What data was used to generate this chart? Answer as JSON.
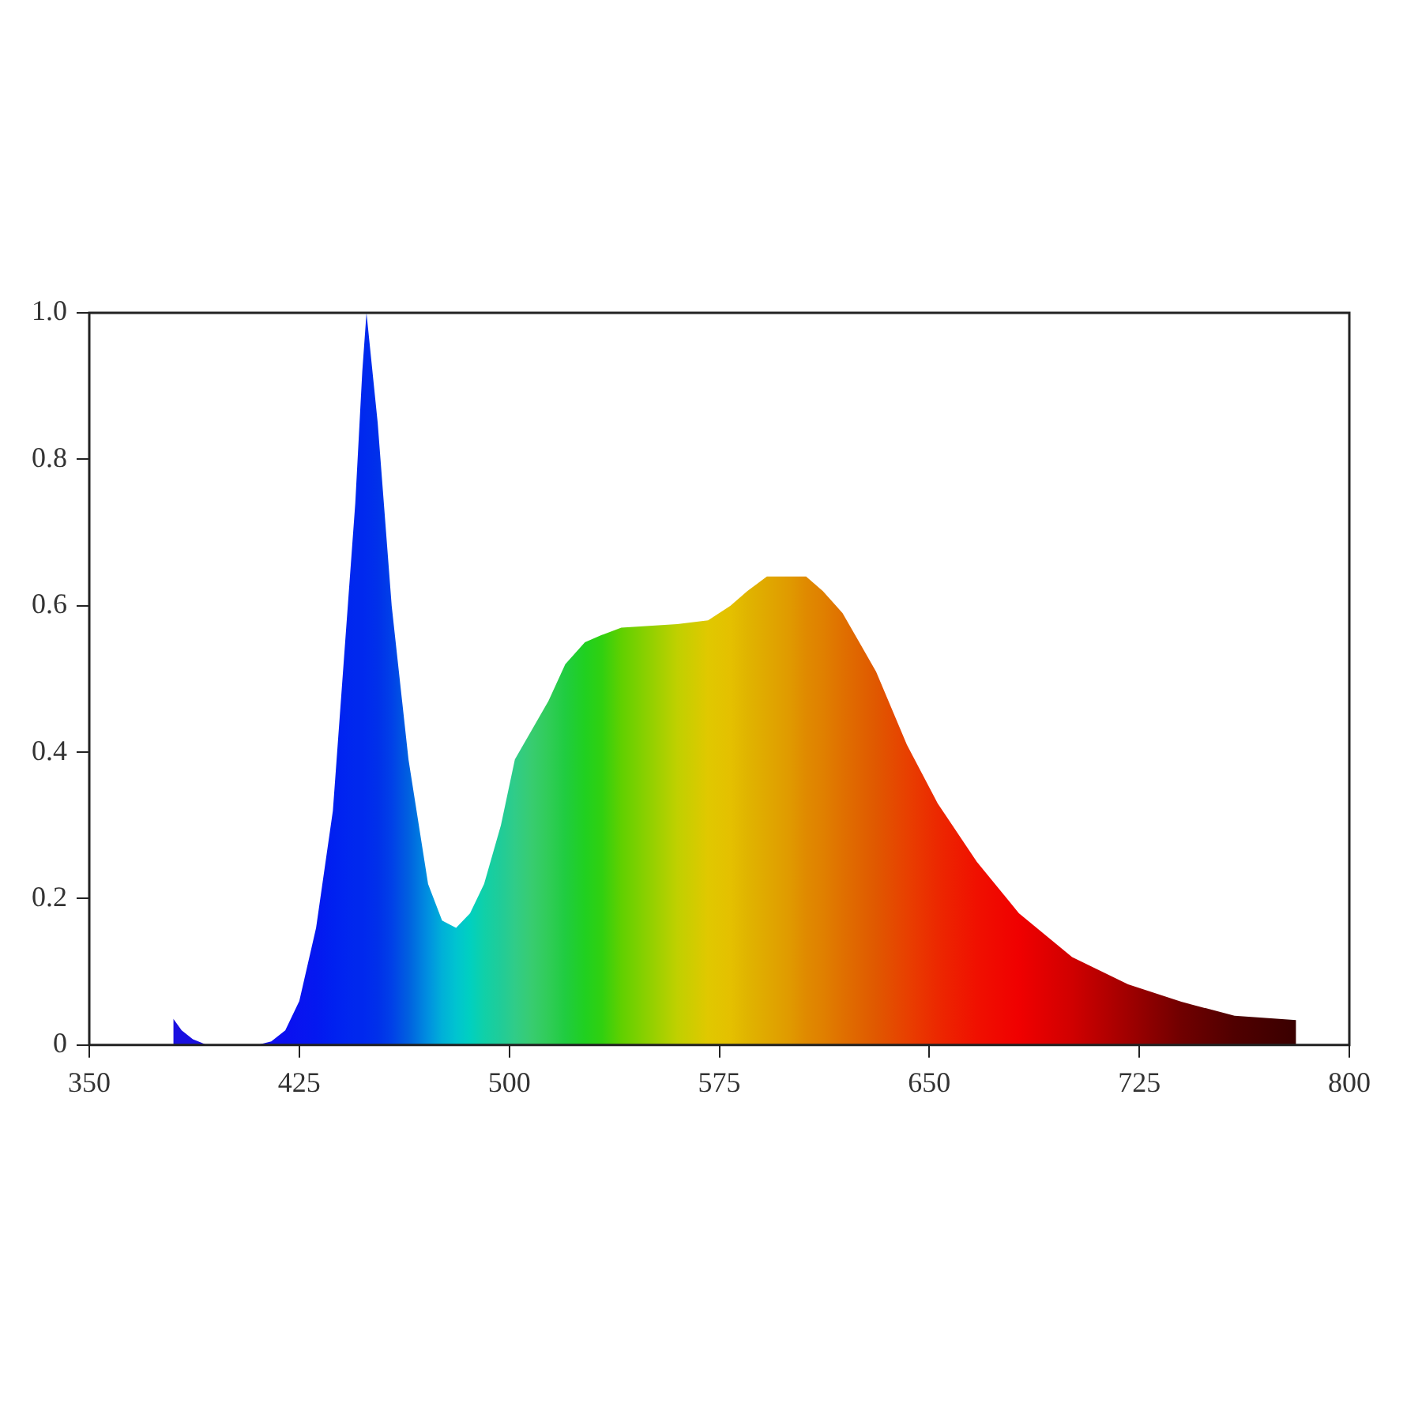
{
  "chart_data": {
    "type": "area",
    "marker": "none",
    "grid": false,
    "legend": false,
    "xlim": [
      350,
      800
    ],
    "xticks": [
      350,
      425,
      500,
      575,
      650,
      725,
      800
    ],
    "ylim": [
      0,
      1
    ],
    "yticks": [
      {
        "value": 0,
        "label": "0"
      },
      0.2,
      0.4,
      0.6,
      0.8,
      {
        "value": 1,
        "label": "1.0"
      }
    ],
    "series": [
      {
        "x": [
          380,
          383,
          387,
          392,
          410,
          415,
          420,
          425,
          431,
          437,
          441,
          445,
          447.5,
          449,
          453,
          458,
          464,
          471,
          476,
          481,
          486,
          491,
          497,
          502,
          508,
          514,
          520,
          527,
          533,
          540,
          560,
          571,
          579,
          585,
          592,
          600,
          606,
          612,
          619,
          625,
          631,
          642,
          653,
          667,
          682,
          701,
          721,
          740,
          759,
          781
        ],
        "values": [
          0.036,
          0.02,
          0.008,
          0,
          0,
          0.005,
          0.02,
          0.06,
          0.16,
          0.32,
          0.53,
          0.74,
          0.92,
          1.0,
          0.85,
          0.6,
          0.39,
          0.22,
          0.17,
          0.16,
          0.18,
          0.22,
          0.3,
          0.39,
          0.43,
          0.47,
          0.52,
          0.55,
          0.56,
          0.57,
          0.575,
          0.58,
          0.6,
          0.62,
          0.64,
          0.64,
          0.64,
          0.62,
          0.59,
          0.55,
          0.51,
          0.41,
          0.33,
          0.25,
          0.18,
          0.12,
          0.083,
          0.059,
          0.04,
          0.034
        ],
        "colors": [
          "#1a10e0",
          "#1a10e0",
          "#1a10e0",
          "#1a10e0",
          "#1410e8",
          "#1010ee",
          "#0a10f0",
          "#0814f0",
          "#0418f0",
          "#0020f0",
          "#0024f0",
          "#0028ee",
          "#0028ee",
          "#002aee",
          "#0030ea",
          "#0040e8",
          "#0060e0",
          "#0090e0",
          "#00b0d8",
          "#00c4d0",
          "#00d0c0",
          "#10d0a8",
          "#20cc98",
          "#30cc88",
          "#38cc70",
          "#30cc58",
          "#20cc40",
          "#20d020",
          "#30d010",
          "#60d000",
          "#c0d000",
          "#e0c800",
          "#e4c000",
          "#e0b400",
          "#e0a800",
          "#e09a00",
          "#e08a00",
          "#e08000",
          "#e07000",
          "#e06400",
          "#e05800",
          "#e84000",
          "#ec2800",
          "#f01000",
          "#f00000",
          "#d00000",
          "#a00000",
          "#700000",
          "#500000",
          "#3a0000"
        ]
      }
    ]
  }
}
